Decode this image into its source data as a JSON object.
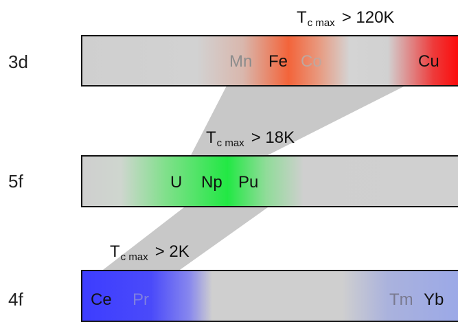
{
  "rows": [
    {
      "label": "3d",
      "threshold": {
        "symbol": "T",
        "subscript": "c max",
        "value": "> 120K"
      },
      "elements": [
        {
          "symbol": "Mn",
          "color": "#8c8c8c"
        },
        {
          "symbol": "Fe",
          "color": "#111111"
        },
        {
          "symbol": "Co",
          "color": "#bfa79f"
        },
        {
          "symbol": "Cu",
          "color": "#111111"
        }
      ]
    },
    {
      "label": "5f",
      "threshold": {
        "symbol": "T",
        "subscript": "c max",
        "value": "> 18K"
      },
      "elements": [
        {
          "symbol": "U",
          "color": "#111111"
        },
        {
          "symbol": "Np",
          "color": "#111111"
        },
        {
          "symbol": "Pu",
          "color": "#111111"
        }
      ]
    },
    {
      "label": "4f",
      "threshold": {
        "symbol": "T",
        "subscript": "c max",
        "value": "> 2K"
      },
      "elements": [
        {
          "symbol": "Ce",
          "color": "#111111"
        },
        {
          "symbol": "Pr",
          "color": "#7f7fe0"
        },
        {
          "symbol": "Tm",
          "color": "#7a7a90"
        },
        {
          "symbol": "Yb",
          "color": "#111111"
        }
      ]
    }
  ],
  "colors": {
    "connector": "#c8c8c8",
    "3d_accent": "#f3643a",
    "5f_accent": "#22e844",
    "4f_accent": "#3d3dff"
  }
}
